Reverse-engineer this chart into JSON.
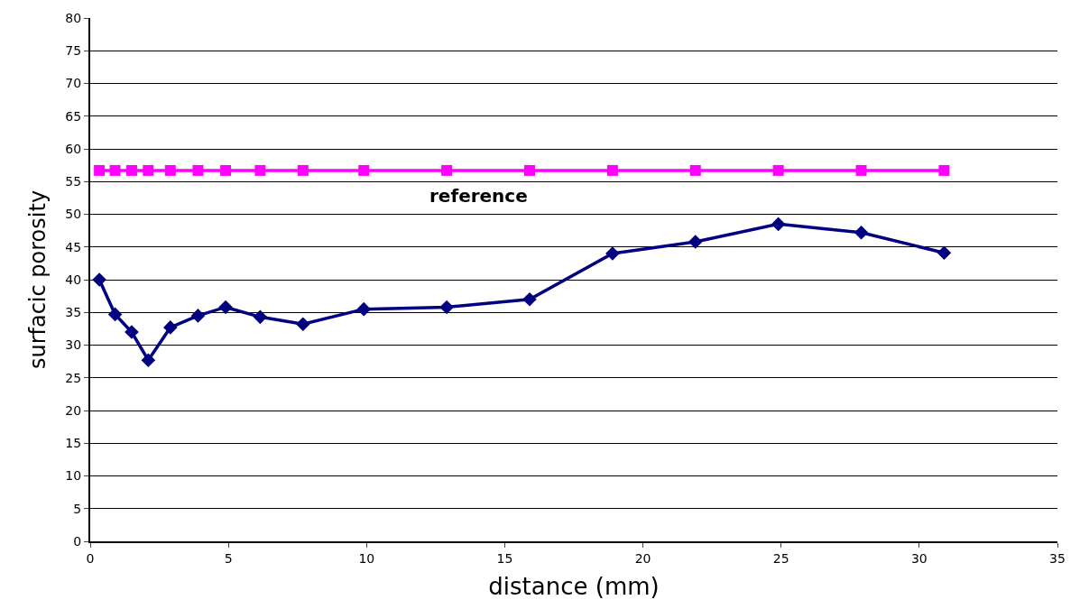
{
  "chart_data": {
    "type": "line",
    "xlabel": "distance (mm)",
    "ylabel": "surfacic porosity",
    "x": [
      0.33,
      0.9,
      1.5,
      2.1,
      2.9,
      3.9,
      4.9,
      6.15,
      7.7,
      9.9,
      12.9,
      15.9,
      18.9,
      21.9,
      24.9,
      27.9,
      30.9
    ],
    "series": [
      {
        "color": "#000080",
        "marker": "diamond",
        "values": [
          40,
          34.7,
          32,
          27.7,
          32.7,
          34.5,
          35.8,
          34.3,
          33.2,
          35.5,
          35.8,
          37,
          44,
          45.8,
          48.5,
          47.2,
          44.1
        ]
      },
      {
        "name": "reference",
        "color": "#ff00ff",
        "marker": "square",
        "values": [
          56.7,
          56.7,
          56.7,
          56.7,
          56.7,
          56.7,
          56.7,
          56.7,
          56.7,
          56.7,
          56.7,
          56.7,
          56.7,
          56.7,
          56.7,
          56.7,
          56.7
        ]
      }
    ],
    "xlim": [
      0,
      35
    ],
    "xticks": [
      0,
      5,
      10,
      15,
      20,
      25,
      30,
      35
    ],
    "ylim": [
      0,
      80
    ],
    "yticks": [
      0,
      5,
      10,
      15,
      20,
      25,
      30,
      35,
      40,
      45,
      50,
      55,
      60,
      65,
      70,
      75,
      80
    ],
    "grid": "y",
    "legend": false
  }
}
